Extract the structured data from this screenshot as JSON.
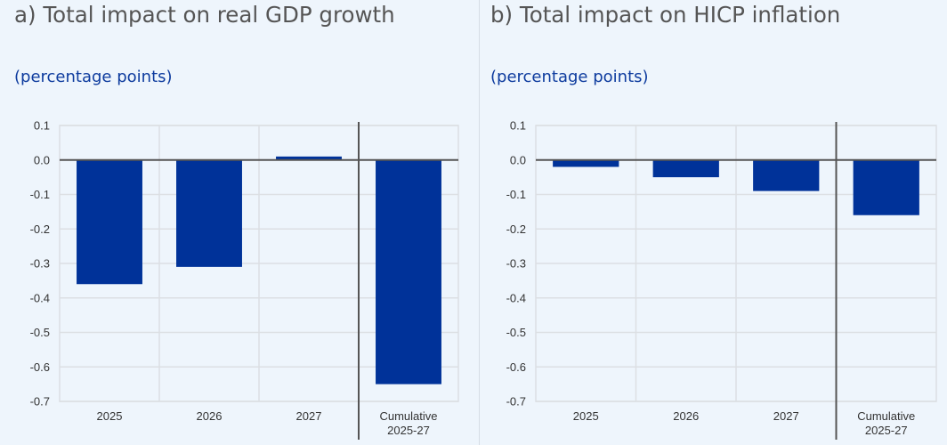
{
  "colors": {
    "background": "#eef5fc",
    "bar": "#003299",
    "grid": "#dcdfe3",
    "axis": "#555555",
    "title": "#555555",
    "subtitle": "#0d3b9e"
  },
  "chart_data": [
    {
      "type": "bar",
      "title": "a) Total impact on real GDP growth",
      "subtitle": "(percentage points)",
      "xlabel": "",
      "ylabel": "(percentage points)",
      "categories": [
        "2025",
        "2026",
        "2027",
        "Cumulative\n2025-27"
      ],
      "category_lines": [
        [
          "2025"
        ],
        [
          "2026"
        ],
        [
          "2027"
        ],
        [
          "Cumulative",
          "2025-27"
        ]
      ],
      "values": [
        -0.36,
        -0.31,
        0.01,
        -0.65
      ],
      "ylim": [
        -0.7,
        0.1
      ],
      "yticks": [
        0.1,
        0.0,
        -0.1,
        -0.2,
        -0.3,
        -0.4,
        -0.5,
        -0.6,
        -0.7
      ],
      "ytick_labels": [
        "0.1",
        "0.0",
        "-0.1",
        "-0.2",
        "-0.3",
        "-0.4",
        "-0.5",
        "-0.6",
        "-0.7"
      ],
      "grid": true,
      "separator_before_category": 3
    },
    {
      "type": "bar",
      "title": "b) Total impact on HICP inflation",
      "subtitle": "(percentage points)",
      "xlabel": "",
      "ylabel": "(percentage points)",
      "categories": [
        "2025",
        "2026",
        "2027",
        "Cumulative\n2025-27"
      ],
      "category_lines": [
        [
          "2025"
        ],
        [
          "2026"
        ],
        [
          "2027"
        ],
        [
          "Cumulative",
          "2025-27"
        ]
      ],
      "values": [
        -0.02,
        -0.05,
        -0.09,
        -0.16
      ],
      "ylim": [
        -0.7,
        0.1
      ],
      "yticks": [
        0.1,
        0.0,
        -0.1,
        -0.2,
        -0.3,
        -0.4,
        -0.5,
        -0.6,
        -0.7
      ],
      "ytick_labels": [
        "0.1",
        "0.0",
        "-0.1",
        "-0.2",
        "-0.3",
        "-0.4",
        "-0.5",
        "-0.6",
        "-0.7"
      ],
      "grid": true,
      "separator_before_category": 3
    }
  ]
}
